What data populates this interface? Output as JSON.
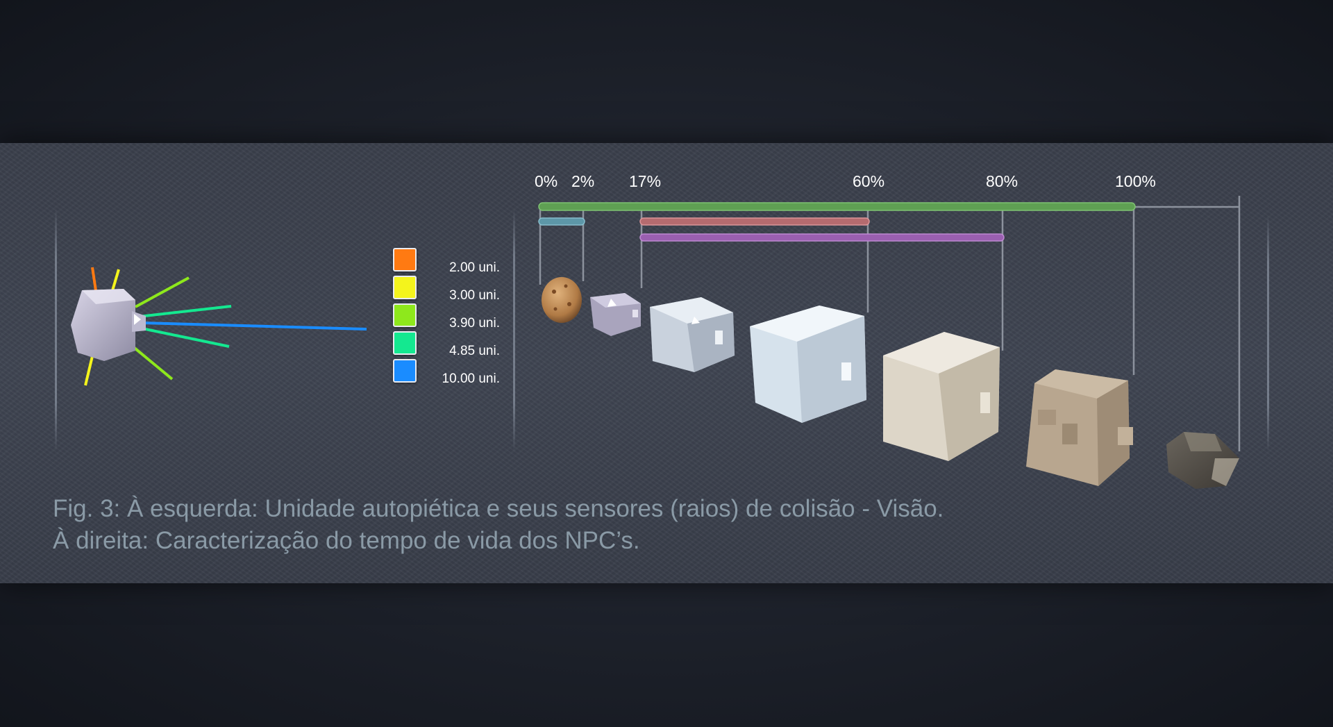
{
  "sensor_legend": [
    {
      "label": "2.00 uni.",
      "color": "#ff7a12"
    },
    {
      "label": "3.00 uni.",
      "color": "#f4f41c"
    },
    {
      "label": "3.90 uni.",
      "color": "#8ee81c"
    },
    {
      "label": "4.85 uni.",
      "color": "#14e890"
    },
    {
      "label": "10.00 uni.",
      "color": "#1a8cff"
    }
  ],
  "lifetime_scale": {
    "ticks": [
      "0%",
      "2%",
      "17%",
      "60%",
      "80%",
      "100%"
    ],
    "bars": [
      {
        "from": 0,
        "to": 100,
        "color": "#5fa053"
      },
      {
        "from": 0,
        "to": 2,
        "color": "#5d97a8"
      },
      {
        "from": 17,
        "to": 60,
        "color": "#b56b6f"
      },
      {
        "from": 17,
        "to": 80,
        "color": "#9a5fb0"
      }
    ]
  },
  "caption": {
    "line1": "Fig. 3: À esquerda: Unidade autopiética e seus sensores (raios) de colisão - Visão.",
    "line2": "À direita: Caracterização do tempo de vida dos NPC’s."
  }
}
